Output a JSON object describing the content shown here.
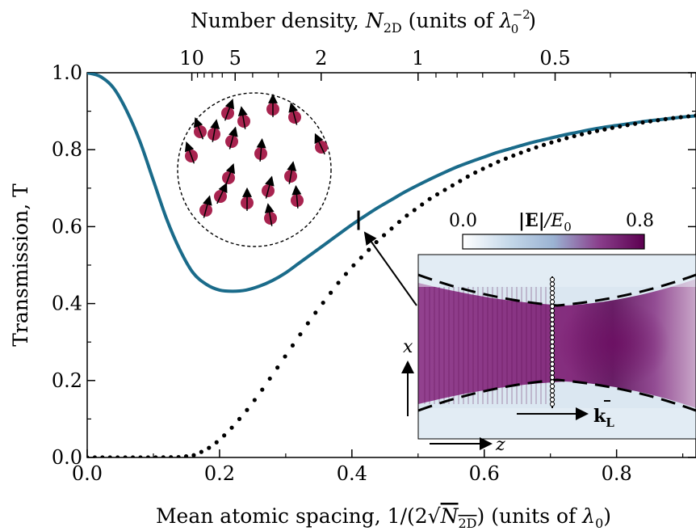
{
  "chart_data": {
    "type": "line",
    "xlabel_text": "Mean atomic spacing, 1/(2",
    "xlabel_sqrt": "N",
    "xlabel_sqrt_sub": "2D",
    "xlabel_tail": ") (units of ",
    "xlabel_lambda": "λ",
    "xlabel_lambda_sub": "0",
    "xlabel_end": ")",
    "ylabel": "Transmission, T",
    "top_label_prefix": "Number density, ",
    "top_label_N": "N",
    "top_label_N_sub": "2D",
    "top_label_units": " (units of ",
    "top_label_lambda": "λ",
    "top_label_lambda_sub": "0",
    "top_label_lambda_sup": "−2",
    "top_label_end": ")",
    "xlim": [
      0.0,
      0.92
    ],
    "ylim": [
      0.0,
      1.0
    ],
    "x_ticks": [
      0.0,
      0.2,
      0.4,
      0.6,
      0.8
    ],
    "x_tick_labels": [
      "0.0",
      "0.2",
      "0.4",
      "0.6",
      "0.8"
    ],
    "y_ticks": [
      0.0,
      0.2,
      0.4,
      0.6,
      0.8,
      1.0
    ],
    "y_tick_labels": [
      "0.0",
      "0.2",
      "0.4",
      "0.6",
      "0.8",
      "1.0"
    ],
    "top_ticks": [
      {
        "label": "10",
        "density": 10
      },
      {
        "label": "5",
        "density": 5
      },
      {
        "label": "2",
        "density": 2
      },
      {
        "label": "1",
        "density": 1
      },
      {
        "label": "0.5",
        "density": 0.5
      }
    ],
    "top_minor_densities": [
      9,
      8,
      7,
      6,
      4,
      3,
      0.9,
      0.8,
      0.7,
      0.6,
      0.4,
      0.3
    ],
    "series": [
      {
        "style": "solid",
        "color": "#1a6b8a",
        "x": [
          0.0,
          0.02,
          0.04,
          0.06,
          0.08,
          0.1,
          0.12,
          0.14,
          0.16,
          0.18,
          0.2,
          0.22,
          0.24,
          0.26,
          0.28,
          0.3,
          0.32,
          0.34,
          0.36,
          0.38,
          0.4,
          0.42,
          0.44,
          0.46,
          0.48,
          0.5,
          0.52,
          0.54,
          0.56,
          0.58,
          0.6,
          0.62,
          0.64,
          0.66,
          0.68,
          0.7,
          0.72,
          0.74,
          0.76,
          0.78,
          0.8,
          0.82,
          0.84,
          0.86,
          0.88,
          0.9,
          0.92
        ],
        "y": [
          1.0,
          0.99,
          0.96,
          0.9,
          0.82,
          0.72,
          0.62,
          0.54,
          0.48,
          0.45,
          0.435,
          0.432,
          0.435,
          0.445,
          0.46,
          0.48,
          0.505,
          0.53,
          0.555,
          0.58,
          0.605,
          0.628,
          0.65,
          0.67,
          0.69,
          0.708,
          0.725,
          0.741,
          0.756,
          0.769,
          0.781,
          0.793,
          0.803,
          0.813,
          0.822,
          0.83,
          0.838,
          0.845,
          0.852,
          0.858,
          0.863,
          0.868,
          0.873,
          0.877,
          0.881,
          0.885,
          0.888
        ]
      },
      {
        "style": "dotted",
        "color": "#000000",
        "x": [
          0.0,
          0.1,
          0.14,
          0.16,
          0.18,
          0.2,
          0.22,
          0.24,
          0.26,
          0.28,
          0.3,
          0.32,
          0.34,
          0.36,
          0.38,
          0.4,
          0.42,
          0.44,
          0.46,
          0.48,
          0.5,
          0.52,
          0.54,
          0.56,
          0.58,
          0.6,
          0.62,
          0.64,
          0.66,
          0.68,
          0.7,
          0.72,
          0.74,
          0.76,
          0.78,
          0.8,
          0.82,
          0.84,
          0.86,
          0.88,
          0.9,
          0.92
        ],
        "y": [
          0.0,
          0.0,
          0.001,
          0.005,
          0.02,
          0.045,
          0.08,
          0.12,
          0.165,
          0.215,
          0.265,
          0.315,
          0.365,
          0.41,
          0.455,
          0.495,
          0.53,
          0.565,
          0.595,
          0.625,
          0.65,
          0.675,
          0.695,
          0.715,
          0.735,
          0.752,
          0.768,
          0.782,
          0.795,
          0.807,
          0.818,
          0.828,
          0.837,
          0.845,
          0.852,
          0.859,
          0.865,
          0.871,
          0.876,
          0.881,
          0.885,
          0.889
        ]
      }
    ],
    "marker_x": 0.41,
    "inset": {
      "colorbar_min": "0.0",
      "colorbar_label_E": "|E|",
      "colorbar_label_rest": "/E",
      "colorbar_label_sub": "0",
      "colorbar_max": "0.8",
      "x_axis_label": "x",
      "z_axis_label": "z",
      "k_label": "k",
      "k_sub": "L",
      "colors": [
        "#ffffff",
        "#c6d9ea",
        "#7fa2c8",
        "#8a3f8c",
        "#6b0a5c"
      ]
    }
  }
}
